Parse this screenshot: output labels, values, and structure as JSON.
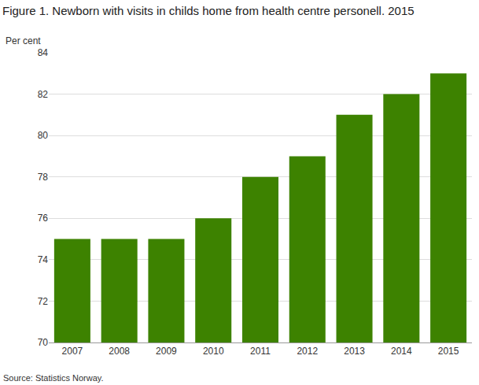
{
  "chart_data": {
    "type": "bar",
    "title": "Figure 1. Newborn with visits in childs home from health centre personell. 2015",
    "y_label": "Per cent",
    "source": "Source: Statistics Norway.",
    "categories": [
      "2007",
      "2008",
      "2009",
      "2010",
      "2011",
      "2012",
      "2013",
      "2014",
      "2015"
    ],
    "values": [
      75,
      75,
      75,
      76,
      78,
      79,
      81,
      82,
      83
    ],
    "color": "#3d8200",
    "ylim": [
      70,
      84
    ],
    "yticks": [
      70,
      72,
      74,
      76,
      78,
      80,
      82,
      84
    ],
    "grid": true
  }
}
